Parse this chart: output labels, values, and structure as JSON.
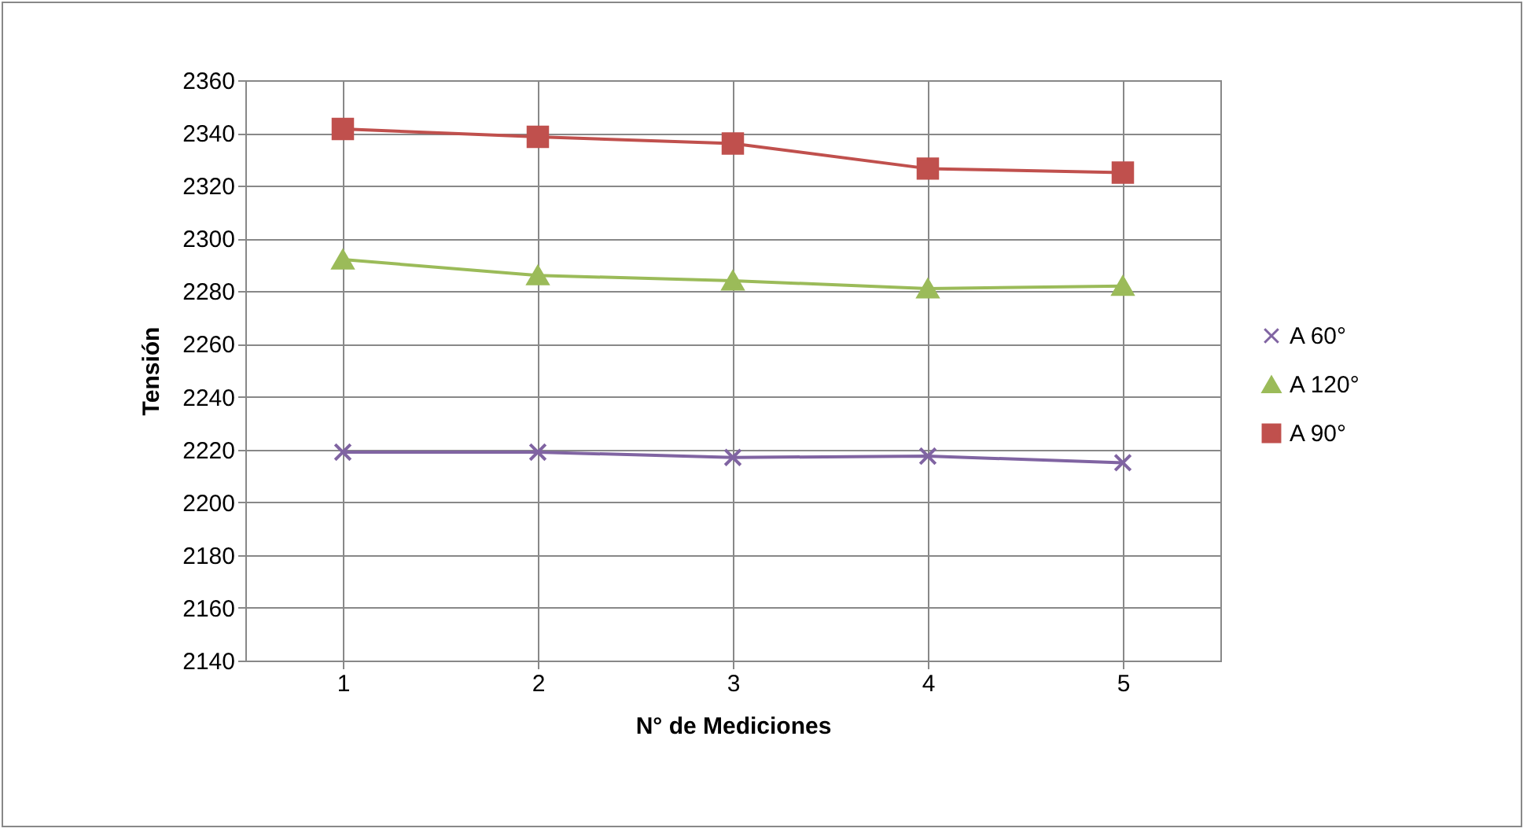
{
  "chart_data": {
    "type": "line",
    "xlabel": "N° de Mediciones",
    "ylabel": "Tensión",
    "categories": [
      "1",
      "2",
      "3",
      "4",
      "5"
    ],
    "series": [
      {
        "name": "A 60°",
        "color": "#8064a2",
        "marker": "cross",
        "values": [
          2219,
          2219,
          2217,
          2217.5,
          2215
        ]
      },
      {
        "name": "A 120°",
        "color": "#9bbb59",
        "marker": "triangle",
        "values": [
          2292,
          2286,
          2284,
          2281,
          2282
        ]
      },
      {
        "name": "A 90°",
        "color": "#c0504d",
        "marker": "square",
        "values": [
          2341.5,
          2338.5,
          2336,
          2326.5,
          2325
        ]
      }
    ],
    "ylim": [
      2140,
      2360
    ],
    "yticks": [
      2140,
      2160,
      2180,
      2200,
      2220,
      2240,
      2260,
      2280,
      2300,
      2320,
      2340,
      2360
    ],
    "grid": true,
    "legend": "right"
  }
}
